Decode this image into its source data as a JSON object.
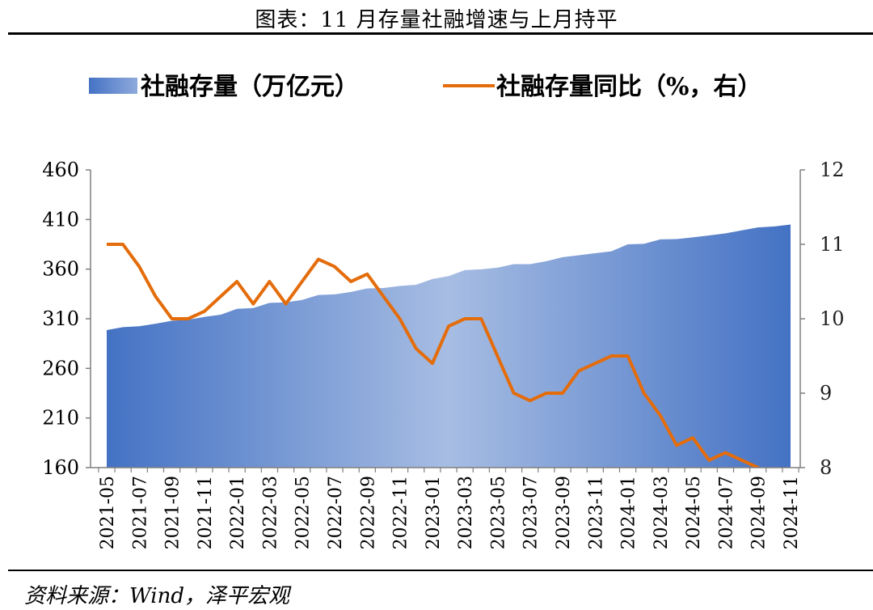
{
  "title": "图表：11 月存量社融增速与上月持平",
  "source": "资料来源：Wind，泽平宏观",
  "colors": {
    "area_dark": "#4472C4",
    "area_light": "#A7BDE3",
    "line": "#E46C0A",
    "axis": "#7F7F7F"
  },
  "chart_data": {
    "type": "area",
    "categories": [
      "2021-05",
      "2021-06",
      "2021-07",
      "2021-08",
      "2021-09",
      "2021-10",
      "2021-11",
      "2021-12",
      "2022-01",
      "2022-02",
      "2022-03",
      "2022-04",
      "2022-05",
      "2022-06",
      "2022-07",
      "2022-08",
      "2022-09",
      "2022-10",
      "2022-11",
      "2022-12",
      "2023-01",
      "2023-02",
      "2023-03",
      "2023-04",
      "2023-05",
      "2023-06",
      "2023-07",
      "2023-08",
      "2023-09",
      "2023-10",
      "2023-11",
      "2023-12",
      "2024-01",
      "2024-02",
      "2024-03",
      "2024-04",
      "2024-05",
      "2024-06",
      "2024-07",
      "2024-08",
      "2024-09",
      "2024-10",
      "2024-11"
    ],
    "xtick_labels": [
      "2021-05",
      "2021-07",
      "2021-09",
      "2021-11",
      "2022-01",
      "2022-03",
      "2022-05",
      "2022-07",
      "2022-09",
      "2022-11",
      "2023-01",
      "2023-03",
      "2023-05",
      "2023-07",
      "2023-09",
      "2023-11",
      "2024-01",
      "2024-03",
      "2024-05",
      "2024-07",
      "2024-09",
      "2024-11"
    ],
    "series": [
      {
        "name": "社融存量（万亿元）",
        "type": "area",
        "axis": "left",
        "values": [
          298.6,
          301.5,
          302.5,
          305.0,
          308.0,
          309.0,
          311.9,
          314.1,
          320.0,
          320.8,
          326.0,
          326.5,
          329.0,
          334.0,
          334.5,
          337.0,
          340.6,
          341.0,
          343.0,
          344.2,
          350.0,
          353.0,
          359.0,
          359.8,
          361.4,
          365.0,
          365.0,
          368.0,
          372.0,
          374.0,
          376.0,
          378.0,
          385.0,
          385.5,
          390.0,
          390.3,
          392.0,
          394.0,
          396.0,
          399.0,
          402.0,
          403.0,
          405.0
        ]
      },
      {
        "name": "社融存量同比（%，右）",
        "type": "line",
        "axis": "right",
        "values": [
          11.0,
          11.0,
          10.7,
          10.3,
          10.0,
          10.0,
          10.1,
          10.3,
          10.5,
          10.2,
          10.5,
          10.2,
          10.5,
          10.8,
          10.7,
          10.5,
          10.6,
          10.3,
          10.0,
          9.6,
          9.4,
          9.9,
          10.0,
          10.0,
          9.5,
          9.0,
          8.9,
          9.0,
          9.0,
          9.3,
          9.4,
          9.5,
          9.5,
          9.0,
          8.7,
          8.3,
          8.4,
          8.1,
          8.2,
          8.1,
          8.0,
          7.8,
          7.8
        ]
      }
    ],
    "ylim_left": [
      160,
      460
    ],
    "yticks_left": [
      160,
      210,
      260,
      310,
      360,
      410,
      460
    ],
    "ylim_right": [
      8,
      12
    ],
    "yticks_right": [
      8,
      9,
      10,
      11,
      12
    ],
    "legend_position": "top",
    "grid": false
  }
}
